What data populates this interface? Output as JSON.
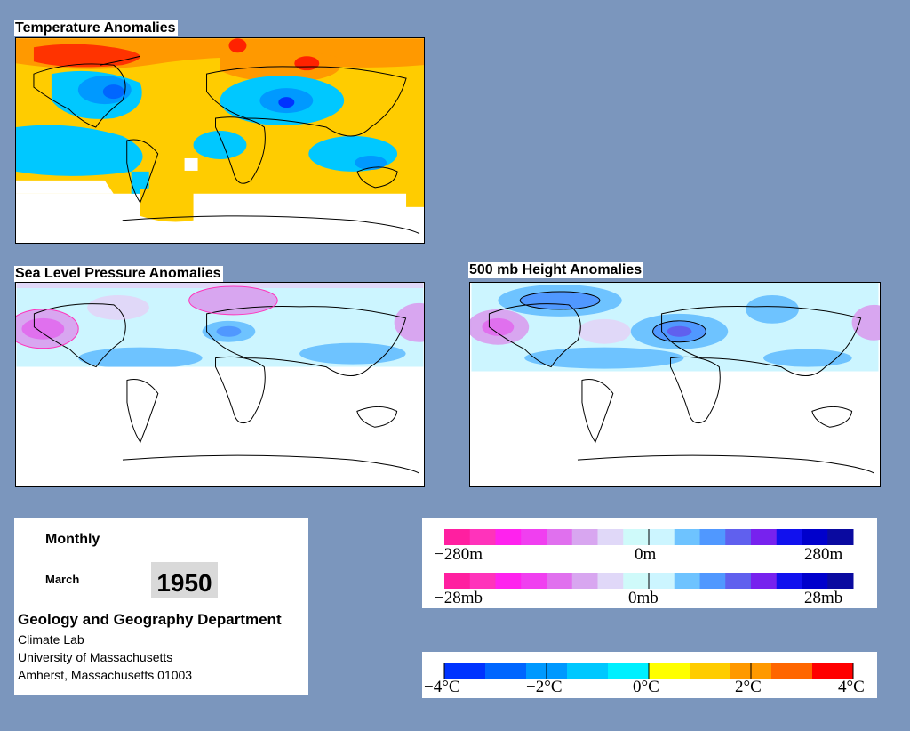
{
  "panels": {
    "temperature": {
      "title": "Temperature Anomalies"
    },
    "slp": {
      "title": "Sea Level Pressure Anomalies"
    },
    "height500": {
      "title": "500 mb Height Anomalies"
    }
  },
  "info": {
    "mode": "Monthly",
    "month": "March",
    "year": "1950",
    "department": "Geology and Geography Department",
    "address_lines": [
      "Climate Lab",
      "University of Massachusetts",
      "Amherst, Massachusetts 01003"
    ]
  },
  "legends": {
    "height": {
      "min": "−280m",
      "mid": "0m",
      "max": "280m"
    },
    "pressure": {
      "min": "−28mb",
      "mid": "0mb",
      "max": "28mb"
    },
    "temperature": {
      "ticks": [
        "−4°C",
        "−2°C",
        "0°C",
        "2°C",
        "4°C"
      ]
    }
  },
  "colors": {
    "background": "#7b96bd",
    "pressure_height_scale": [
      "#ff1fa0",
      "#ff33bb",
      "#ff22ee",
      "#f03ff0",
      "#e070ee",
      "#d8a6f0",
      "#e0d8f8",
      "#cffafa",
      "#ccf5ff",
      "#6ec3ff",
      "#5098ff",
      "#6060ee",
      "#7722ee",
      "#1111ee",
      "#0000cc",
      "#0a0aa0"
    ],
    "temperature_scale": [
      "#0033ff",
      "#0066ff",
      "#0099ff",
      "#00c8ff",
      "#00f0ff",
      "#ffff00",
      "#ffcc00",
      "#ff9900",
      "#ff6600",
      "#ff0000"
    ]
  }
}
